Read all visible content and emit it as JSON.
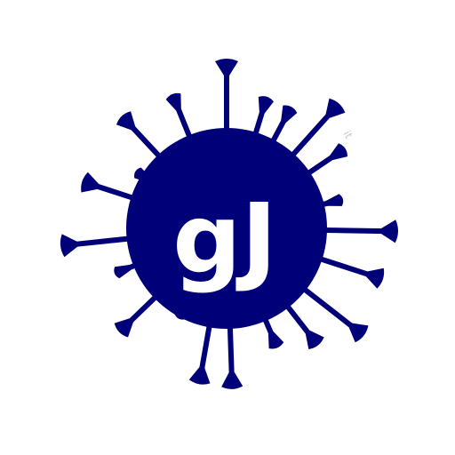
{
  "logo": {
    "monogram": "gJ",
    "watermark": "it",
    "colors": {
      "virus": "#000078",
      "monogram": "#ffffff",
      "background": "#ffffff",
      "watermark": "#c8c8d8"
    }
  }
}
